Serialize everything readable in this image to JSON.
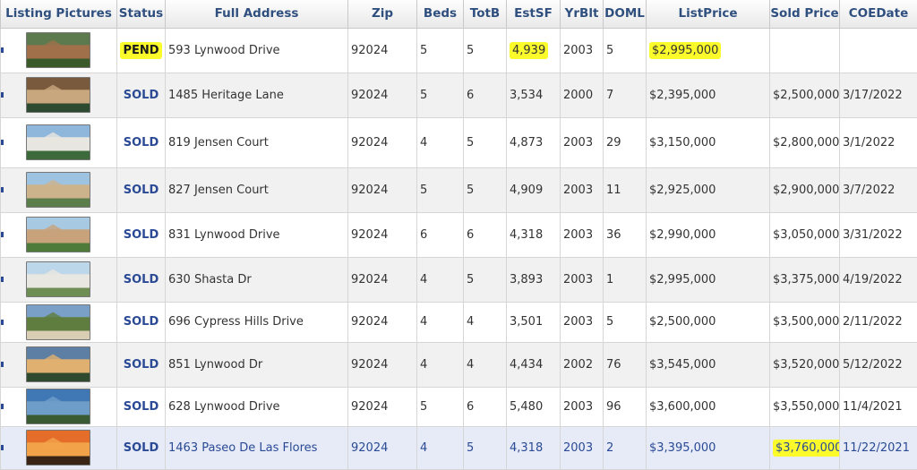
{
  "columns": [
    "Listing Pictures",
    "Status",
    "Full Address",
    "Zip",
    "Beds",
    "TotB",
    "EstSF",
    "YrBlt",
    "DOML",
    "ListPrice",
    "Sold Price",
    "COEDate"
  ],
  "highlight_color": "#fbfb2b",
  "link_color": "#2a4a95",
  "rows": [
    {
      "photo": "house-photo",
      "status": "PEND",
      "address": "593  Lynwood Drive",
      "zip": "92024",
      "beds": "5",
      "totb": "5",
      "estsf": "4,939",
      "yrblt": "2003",
      "doml": "5",
      "list_price": "$2,995,000",
      "sold_price": "",
      "coe": ""
    },
    {
      "photo": "house-photo",
      "status": "SOLD",
      "address": "1485  Heritage Lane",
      "zip": "92024",
      "beds": "5",
      "totb": "6",
      "estsf": "3,534",
      "yrblt": "2000",
      "doml": "7",
      "list_price": "$2,395,000",
      "sold_price": "$2,500,000",
      "coe": "3/17/2022"
    },
    {
      "photo": "house-photo",
      "status": "SOLD",
      "address": "819  Jensen Court",
      "zip": "92024",
      "beds": "4",
      "totb": "5",
      "estsf": "4,873",
      "yrblt": "2003",
      "doml": "29",
      "list_price": "$3,150,000",
      "sold_price": "$2,800,000",
      "coe": "3/1/2022"
    },
    {
      "photo": "house-photo",
      "status": "SOLD",
      "address": "827  Jensen Court",
      "zip": "92024",
      "beds": "5",
      "totb": "5",
      "estsf": "4,909",
      "yrblt": "2003",
      "doml": "11",
      "list_price": "$2,925,000",
      "sold_price": "$2,900,000",
      "coe": "3/7/2022"
    },
    {
      "photo": "house-photo",
      "status": "SOLD",
      "address": "831  Lynwood Drive",
      "zip": "92024",
      "beds": "6",
      "totb": "6",
      "estsf": "4,318",
      "yrblt": "2003",
      "doml": "36",
      "list_price": "$2,990,000",
      "sold_price": "$3,050,000",
      "coe": "3/31/2022"
    },
    {
      "photo": "house-photo",
      "status": "SOLD",
      "address": "630 Shasta Dr",
      "zip": "92024",
      "beds": "4",
      "totb": "5",
      "estsf": "3,893",
      "yrblt": "2003",
      "doml": "1",
      "list_price": "$2,995,000",
      "sold_price": "$3,375,000",
      "coe": "4/19/2022"
    },
    {
      "photo": "house-photo",
      "status": "SOLD",
      "address": "696 Cypress Hills Drive",
      "zip": "92024",
      "beds": "4",
      "totb": "4",
      "estsf": "3,501",
      "yrblt": "2003",
      "doml": "5",
      "list_price": "$2,500,000",
      "sold_price": "$3,500,000",
      "coe": "2/11/2022"
    },
    {
      "photo": "house-photo",
      "status": "SOLD",
      "address": "851  Lynwood Dr",
      "zip": "92024",
      "beds": "4",
      "totb": "4",
      "estsf": "4,434",
      "yrblt": "2002",
      "doml": "76",
      "list_price": "$3,545,000",
      "sold_price": "$3,520,000",
      "coe": "5/12/2022"
    },
    {
      "photo": "house-photo",
      "status": "SOLD",
      "address": "628  Lynwood Drive",
      "zip": "92024",
      "beds": "5",
      "totb": "6",
      "estsf": "5,480",
      "yrblt": "2003",
      "doml": "96",
      "list_price": "$3,600,000",
      "sold_price": "$3,550,000",
      "coe": "11/4/2021"
    },
    {
      "photo": "house-photo",
      "status": "SOLD",
      "address": "1463 Paseo De Las Flores",
      "zip": "92024",
      "beds": "4",
      "totb": "5",
      "estsf": "4,318",
      "yrblt": "2003",
      "doml": "2",
      "list_price": "$3,395,000",
      "sold_price": "$3,760,000",
      "coe": "11/22/2021"
    }
  ]
}
